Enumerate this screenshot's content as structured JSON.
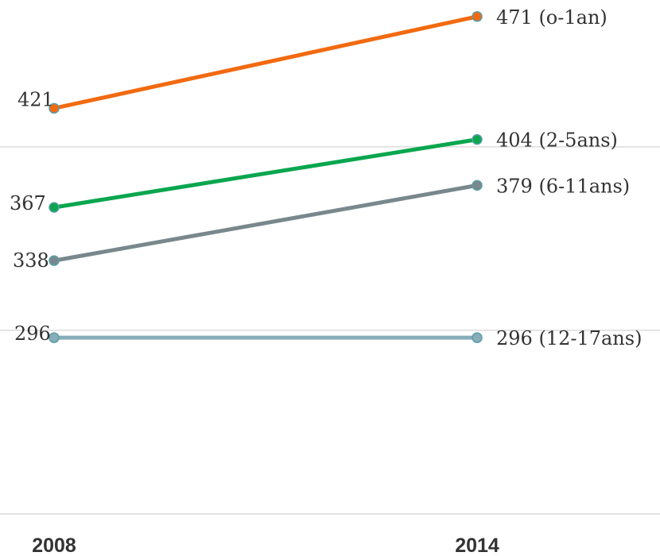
{
  "chart_data": {
    "type": "line",
    "categories": [
      "2008",
      "2014"
    ],
    "x": [
      "2008",
      "2014"
    ],
    "series": [
      {
        "name": "(o-1an)",
        "values": [
          421,
          471
        ],
        "color": "#f26a10"
      },
      {
        "name": "(2-5ans)",
        "values": [
          367,
          404
        ],
        "color": "#0aa64f"
      },
      {
        "name": "(6-11ans)",
        "values": [
          338,
          379
        ],
        "color": "#78888c"
      },
      {
        "name": "(12-17ans)",
        "values": [
          296,
          296
        ],
        "color": "#87adb8"
      }
    ],
    "ylim": [
      200,
      480
    ],
    "grid": true
  }
}
